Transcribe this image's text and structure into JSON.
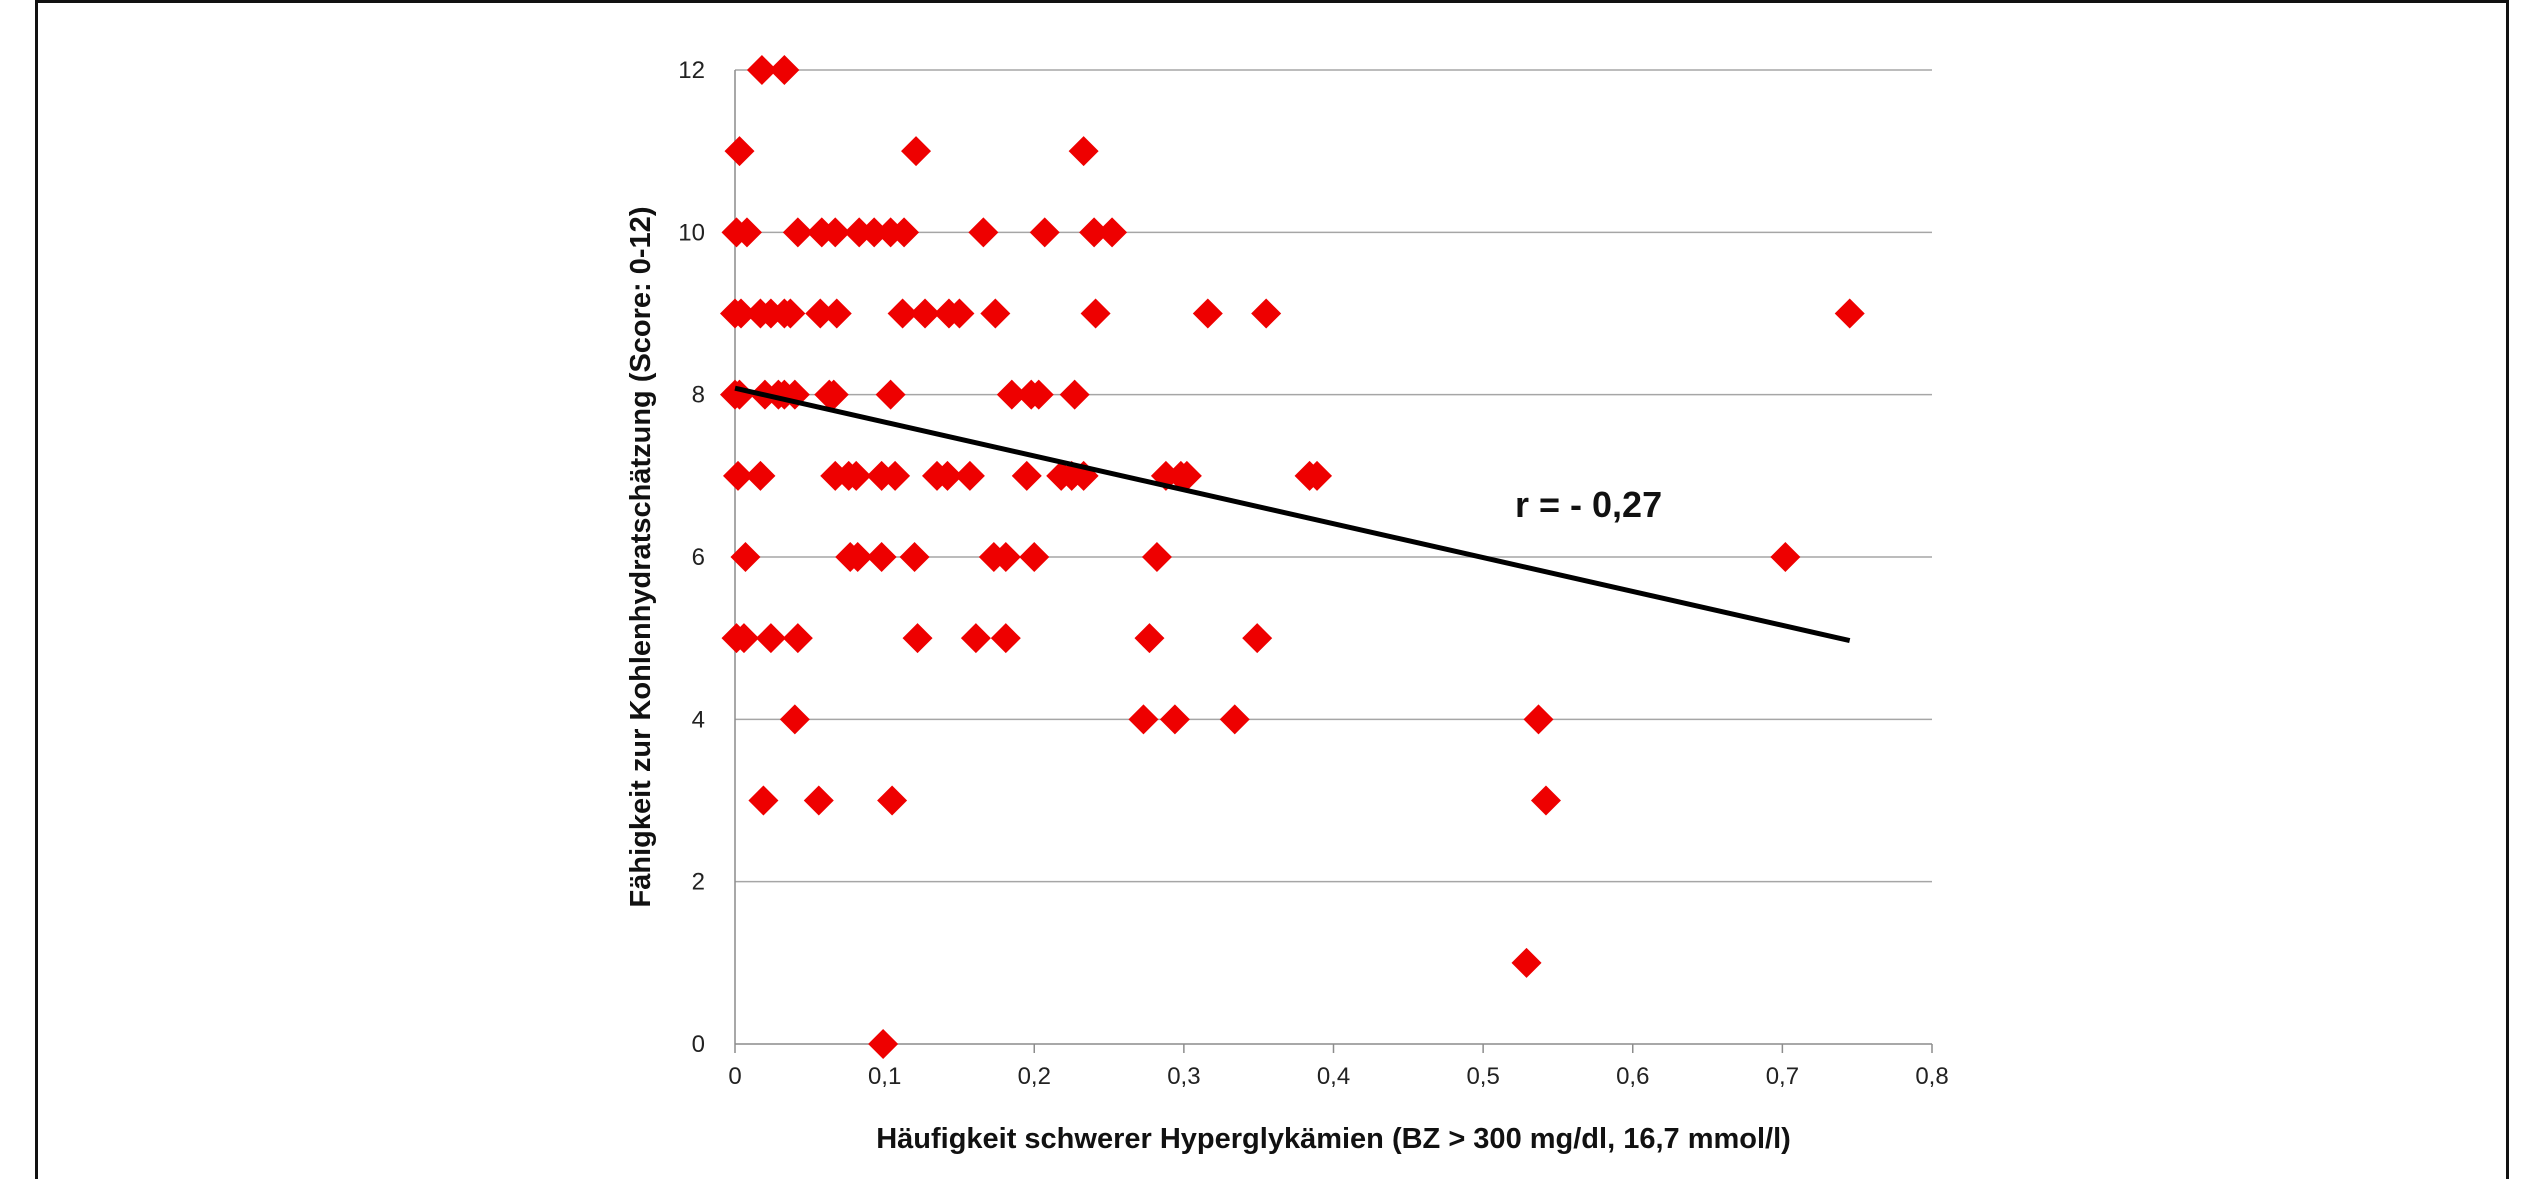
{
  "chart_data": {
    "type": "scatter",
    "xlabel": "Häufigkeit schwerer Hyperglykämien (BZ > 300 mg/dl, 16,7 mmol/l)",
    "ylabel": "Fähigkeit zur Kohlenhydratschätzung (Score: 0-12)",
    "annotation": "r = - 0,27",
    "xlim": [
      0,
      0.8
    ],
    "ylim": [
      0,
      12
    ],
    "xticks": [
      "0",
      "0,1",
      "0,2",
      "0,3",
      "0,4",
      "0,5",
      "0,6",
      "0,7",
      "0,8"
    ],
    "yticks": [
      "0",
      "2",
      "4",
      "6",
      "8",
      "10",
      "12"
    ],
    "grid": "horizontal",
    "marker": "diamond",
    "marker_color": "#ee0000",
    "trendline": {
      "x": [
        0,
        0.745
      ],
      "y": [
        8.08,
        4.97
      ],
      "color": "#000000"
    },
    "points": [
      [
        0.018,
        12
      ],
      [
        0.033,
        12
      ],
      [
        0.003,
        11
      ],
      [
        0.121,
        11
      ],
      [
        0.233,
        11
      ],
      [
        0.001,
        10
      ],
      [
        0.008,
        10
      ],
      [
        0.042,
        10
      ],
      [
        0.058,
        10
      ],
      [
        0.067,
        10
      ],
      [
        0.083,
        10
      ],
      [
        0.093,
        10
      ],
      [
        0.104,
        10
      ],
      [
        0.113,
        10
      ],
      [
        0.166,
        10
      ],
      [
        0.207,
        10
      ],
      [
        0.24,
        10
      ],
      [
        0.252,
        10
      ],
      [
        0.0,
        9
      ],
      [
        0.004,
        9
      ],
      [
        0.017,
        9
      ],
      [
        0.024,
        9
      ],
      [
        0.033,
        9
      ],
      [
        0.037,
        9
      ],
      [
        0.057,
        9
      ],
      [
        0.068,
        9
      ],
      [
        0.112,
        9
      ],
      [
        0.127,
        9
      ],
      [
        0.143,
        9
      ],
      [
        0.15,
        9
      ],
      [
        0.174,
        9
      ],
      [
        0.241,
        9
      ],
      [
        0.316,
        9
      ],
      [
        0.355,
        9
      ],
      [
        0.745,
        9
      ],
      [
        0.0,
        8
      ],
      [
        0.003,
        8
      ],
      [
        0.02,
        8
      ],
      [
        0.029,
        8
      ],
      [
        0.033,
        8
      ],
      [
        0.04,
        8
      ],
      [
        0.063,
        8
      ],
      [
        0.066,
        8
      ],
      [
        0.104,
        8
      ],
      [
        0.185,
        8
      ],
      [
        0.198,
        8
      ],
      [
        0.203,
        8
      ],
      [
        0.227,
        8
      ],
      [
        0.002,
        7
      ],
      [
        0.017,
        7
      ],
      [
        0.067,
        7
      ],
      [
        0.076,
        7
      ],
      [
        0.081,
        7
      ],
      [
        0.098,
        7
      ],
      [
        0.107,
        7
      ],
      [
        0.135,
        7
      ],
      [
        0.142,
        7
      ],
      [
        0.157,
        7
      ],
      [
        0.195,
        7
      ],
      [
        0.218,
        7
      ],
      [
        0.225,
        7
      ],
      [
        0.233,
        7
      ],
      [
        0.288,
        7
      ],
      [
        0.298,
        7
      ],
      [
        0.302,
        7
      ],
      [
        0.384,
        7
      ],
      [
        0.389,
        7
      ],
      [
        0.007,
        6
      ],
      [
        0.077,
        6
      ],
      [
        0.082,
        6
      ],
      [
        0.098,
        6
      ],
      [
        0.12,
        6
      ],
      [
        0.173,
        6
      ],
      [
        0.181,
        6
      ],
      [
        0.2,
        6
      ],
      [
        0.282,
        6
      ],
      [
        0.702,
        6
      ],
      [
        0.001,
        5
      ],
      [
        0.006,
        5
      ],
      [
        0.024,
        5
      ],
      [
        0.042,
        5
      ],
      [
        0.122,
        5
      ],
      [
        0.161,
        5
      ],
      [
        0.181,
        5
      ],
      [
        0.277,
        5
      ],
      [
        0.349,
        5
      ],
      [
        0.04,
        4
      ],
      [
        0.273,
        4
      ],
      [
        0.294,
        4
      ],
      [
        0.334,
        4
      ],
      [
        0.537,
        4
      ],
      [
        0.019,
        3
      ],
      [
        0.056,
        3
      ],
      [
        0.105,
        3
      ],
      [
        0.542,
        3
      ],
      [
        0.529,
        1
      ],
      [
        0.099,
        0
      ]
    ]
  }
}
